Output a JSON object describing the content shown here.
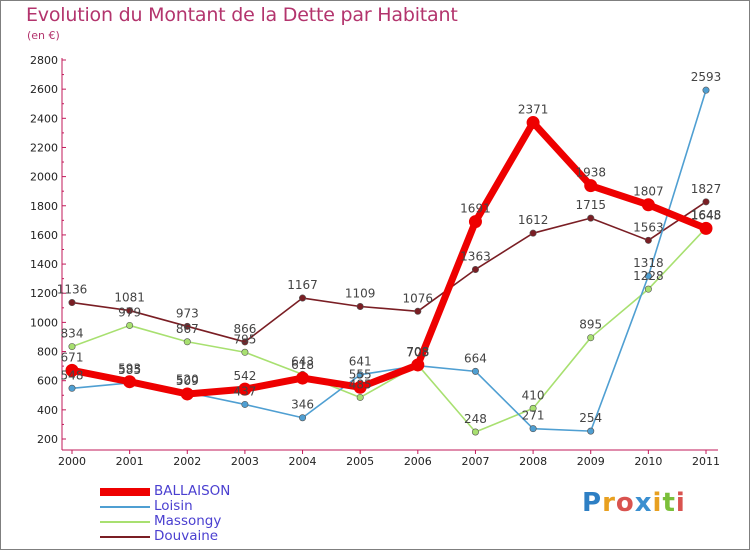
{
  "header": {
    "title": "Evolution du Montant de la Dette par Habitant",
    "subtitle": "(en €)"
  },
  "logo": {
    "letters": [
      "P",
      "r",
      "o",
      "x",
      "i",
      "t",
      "i"
    ],
    "colors": [
      "#2e7fc4",
      "#e8a020",
      "#d9534f",
      "#3a8fd0",
      "#e8a020",
      "#7bbf3a",
      "#d9534f"
    ]
  },
  "chart_data": {
    "type": "line",
    "title": "Evolution du Montant de la Dette par Habitant",
    "subtitle": "(en €)",
    "xlabel": "",
    "ylabel": "",
    "x": [
      "2000",
      "2001",
      "2002",
      "2003",
      "2004",
      "2005",
      "2006",
      "2007",
      "2008",
      "2009",
      "2010",
      "2011"
    ],
    "ylim": [
      200,
      2800
    ],
    "yticks": [
      200,
      400,
      600,
      800,
      1000,
      1200,
      1400,
      1600,
      1800,
      2000,
      2200,
      2400,
      2600,
      2800
    ],
    "grid": false,
    "legend_position": "bottom-left",
    "series": [
      {
        "name": "BALLAISON",
        "color": "#ee0000",
        "values": [
          671,
          593,
          509,
          542,
          618,
          555,
          708,
          1691,
          2371,
          1938,
          1807,
          1645
        ]
      },
      {
        "name": "Loisin",
        "color": "#4f9fd2",
        "values": [
          548,
          585,
          520,
          437,
          346,
          641,
          703,
          664,
          271,
          254,
          1318,
          2593
        ]
      },
      {
        "name": "Massongy",
        "color": "#a8e070",
        "values": [
          834,
          979,
          867,
          795,
          643,
          485,
          708,
          248,
          410,
          895,
          1228,
          1648
        ]
      },
      {
        "name": "Douvaine",
        "color": "#7a1e24",
        "values": [
          1136,
          1081,
          973,
          866,
          1167,
          1109,
          1076,
          1363,
          1612,
          1715,
          1563,
          1827
        ]
      }
    ]
  }
}
